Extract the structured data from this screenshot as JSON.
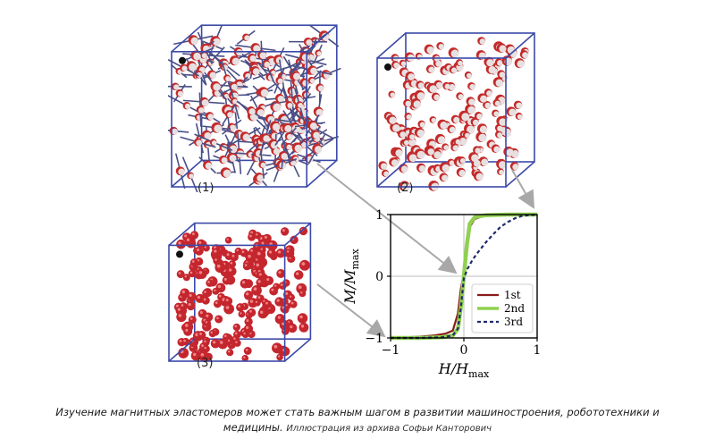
{
  "panels": [
    {
      "label": "(1)"
    },
    {
      "label": "(2)"
    },
    {
      "label": "(3)"
    }
  ],
  "chart_data": {
    "type": "line",
    "ylabel": "M/M_max",
    "xlabel": "H/H_max",
    "xlim": [
      -1,
      1
    ],
    "ylim": [
      -1,
      1
    ],
    "xticks": [
      "−1",
      "0",
      "1"
    ],
    "yticks": [
      "−1",
      "0",
      "1"
    ],
    "grid": "zero lines only",
    "legend_position": "bottom-right",
    "series": [
      {
        "name": "1st",
        "color": "#8b1a1a",
        "style": "solid",
        "x": [
          -1,
          -0.8,
          -0.6,
          -0.4,
          -0.25,
          -0.15,
          -0.08,
          -0.04,
          0,
          0.04,
          0.08,
          0.15,
          0.25,
          0.4,
          0.6,
          0.8,
          1
        ],
        "y": [
          -1,
          -0.99,
          -0.98,
          -0.96,
          -0.93,
          -0.88,
          -0.6,
          -0.2,
          0.05,
          0.4,
          0.8,
          0.93,
          0.97,
          0.99,
          1,
          1,
          1
        ]
      },
      {
        "name": "2nd",
        "color": "#8fd14f",
        "style": "solid-thick",
        "x": [
          -1,
          -0.6,
          -0.3,
          -0.15,
          -0.08,
          -0.04,
          0,
          0.04,
          0.08,
          0.15,
          0.3,
          0.6,
          1
        ],
        "y": [
          -1,
          -1,
          -0.99,
          -0.96,
          -0.85,
          -0.5,
          0,
          0.5,
          0.85,
          0.96,
          0.99,
          1,
          1
        ]
      },
      {
        "name": "3rd",
        "color": "#1f2a6b",
        "style": "dashed",
        "x": [
          -1,
          -0.6,
          -0.3,
          -0.15,
          -0.08,
          -0.04,
          0,
          0.05,
          0.12,
          0.2,
          0.3,
          0.4,
          0.5,
          0.6,
          0.7,
          0.8,
          0.9,
          1
        ],
        "y": [
          -1,
          -1,
          -0.99,
          -0.96,
          -0.85,
          -0.5,
          -0.03,
          0.12,
          0.27,
          0.4,
          0.55,
          0.68,
          0.8,
          0.88,
          0.94,
          0.98,
          0.99,
          1
        ]
      }
    ]
  },
  "caption": {
    "main": "Изучение магнитных эластомеров может стать важным шагом в развитии машиностроения, робототехники и медицины.",
    "credit": "Иллюстрация из архива Софьи Канторович"
  }
}
